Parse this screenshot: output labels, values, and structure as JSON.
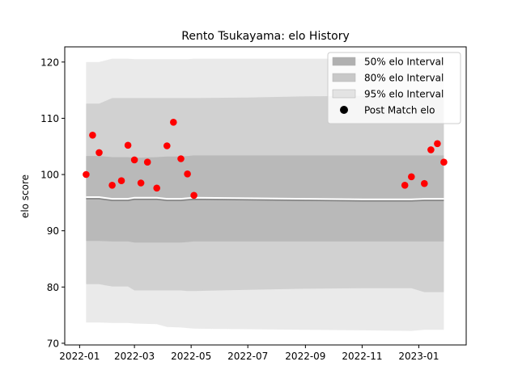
{
  "chart_data": {
    "type": "scatter",
    "title": "Rento Tsukayama: elo History",
    "xlabel": "",
    "ylabel": "elo score",
    "xlim": [
      "2021-12-16",
      "2023-02-21"
    ],
    "ylim": [
      69.7,
      122.7
    ],
    "x_ticks": [
      "2022-01",
      "2022-03",
      "2022-05",
      "2022-07",
      "2022-09",
      "2022-11",
      "2023-01"
    ],
    "y_ticks": [
      70,
      80,
      90,
      100,
      110,
      120
    ],
    "grid": false,
    "legend": {
      "position": "top-right",
      "entries": [
        "50% elo Interval",
        "80% elo Interval",
        "95% elo Interval",
        "Post Match elo"
      ]
    },
    "colors": {
      "points": "#ff0000",
      "band_50": "#b0b0b0",
      "band_80": "#c8c8c8",
      "band_95": "#e3e3e3",
      "mean_line": "#808080"
    },
    "series": [
      {
        "name": "Post Match elo",
        "type": "scatter",
        "points": [
          {
            "x": "2022-01-08",
            "y": 100.0
          },
          {
            "x": "2022-01-15",
            "y": 107.0
          },
          {
            "x": "2022-01-22",
            "y": 103.9
          },
          {
            "x": "2022-02-05",
            "y": 98.1
          },
          {
            "x": "2022-02-15",
            "y": 98.9
          },
          {
            "x": "2022-02-22",
            "y": 105.2
          },
          {
            "x": "2022-03-01",
            "y": 102.6
          },
          {
            "x": "2022-03-08",
            "y": 98.5
          },
          {
            "x": "2022-03-15",
            "y": 102.2
          },
          {
            "x": "2022-03-25",
            "y": 97.6
          },
          {
            "x": "2022-04-05",
            "y": 105.1
          },
          {
            "x": "2022-04-12",
            "y": 109.3
          },
          {
            "x": "2022-04-20",
            "y": 102.8
          },
          {
            "x": "2022-04-27",
            "y": 100.1
          },
          {
            "x": "2022-05-04",
            "y": 96.3
          },
          {
            "x": "2022-12-17",
            "y": 98.1
          },
          {
            "x": "2022-12-24",
            "y": 99.6
          },
          {
            "x": "2023-01-07",
            "y": 98.4
          },
          {
            "x": "2023-01-14",
            "y": 104.4
          },
          {
            "x": "2023-01-21",
            "y": 105.5
          },
          {
            "x": "2023-01-28",
            "y": 102.2
          }
        ]
      }
    ],
    "bands": [
      {
        "name": "95% elo Interval",
        "x": [
          "2022-01-08",
          "2022-01-22",
          "2022-02-05",
          "2022-02-22",
          "2022-03-01",
          "2022-03-25",
          "2022-04-05",
          "2022-04-20",
          "2022-04-27",
          "2022-05-04",
          "2022-07-01",
          "2022-09-01",
          "2022-11-01",
          "2022-12-24",
          "2023-01-07",
          "2023-01-28"
        ],
        "upper": [
          120.0,
          120.0,
          120.6,
          120.6,
          120.5,
          120.5,
          120.5,
          120.5,
          120.5,
          120.6,
          120.6,
          120.6,
          120.6,
          120.6,
          120.6,
          120.6
        ],
        "lower": [
          73.7,
          73.7,
          73.6,
          73.6,
          73.5,
          73.4,
          72.9,
          72.8,
          72.7,
          72.6,
          72.5,
          72.4,
          72.3,
          72.2,
          72.4,
          72.4
        ]
      },
      {
        "name": "80% elo Interval",
        "x": [
          "2022-01-08",
          "2022-01-22",
          "2022-02-05",
          "2022-02-22",
          "2022-03-01",
          "2022-03-25",
          "2022-04-05",
          "2022-04-20",
          "2022-04-27",
          "2022-05-04",
          "2022-07-01",
          "2022-09-01",
          "2022-11-01",
          "2022-12-24",
          "2023-01-07",
          "2023-01-28"
        ],
        "upper": [
          112.6,
          112.6,
          113.6,
          113.6,
          113.6,
          113.6,
          113.6,
          113.6,
          113.6,
          113.6,
          113.7,
          113.9,
          114.0,
          114.0,
          114.0,
          114.0
        ],
        "lower": [
          80.5,
          80.5,
          80.1,
          80.1,
          79.4,
          79.4,
          79.4,
          79.4,
          79.3,
          79.3,
          79.5,
          79.7,
          79.8,
          79.8,
          79.1,
          79.1
        ]
      },
      {
        "name": "50% elo Interval",
        "x": [
          "2022-01-08",
          "2022-01-22",
          "2022-02-05",
          "2022-02-22",
          "2022-03-01",
          "2022-03-25",
          "2022-04-05",
          "2022-04-20",
          "2022-04-27",
          "2022-05-04",
          "2022-07-01",
          "2022-09-01",
          "2022-11-01",
          "2022-12-24",
          "2023-01-07",
          "2023-01-28"
        ],
        "upper": [
          103.3,
          103.3,
          103.1,
          103.1,
          103.0,
          103.1,
          103.2,
          103.2,
          103.3,
          103.4,
          103.4,
          103.4,
          103.4,
          103.4,
          103.4,
          103.4
        ],
        "lower": [
          88.2,
          88.2,
          88.1,
          88.1,
          87.9,
          87.9,
          87.9,
          87.9,
          88.0,
          88.1,
          88.1,
          88.1,
          88.1,
          88.1,
          88.1,
          88.1
        ]
      }
    ],
    "mean_line": {
      "x": [
        "2022-01-08",
        "2022-01-22",
        "2022-02-05",
        "2022-02-22",
        "2022-03-01",
        "2022-03-25",
        "2022-04-05",
        "2022-04-20",
        "2022-04-27",
        "2022-05-04",
        "2022-07-01",
        "2022-09-01",
        "2022-11-01",
        "2022-12-24",
        "2023-01-07",
        "2023-01-28"
      ],
      "y": [
        95.7,
        95.7,
        95.4,
        95.4,
        95.6,
        95.6,
        95.4,
        95.4,
        95.5,
        95.6,
        95.5,
        95.4,
        95.3,
        95.3,
        95.4,
        95.4
      ]
    }
  }
}
